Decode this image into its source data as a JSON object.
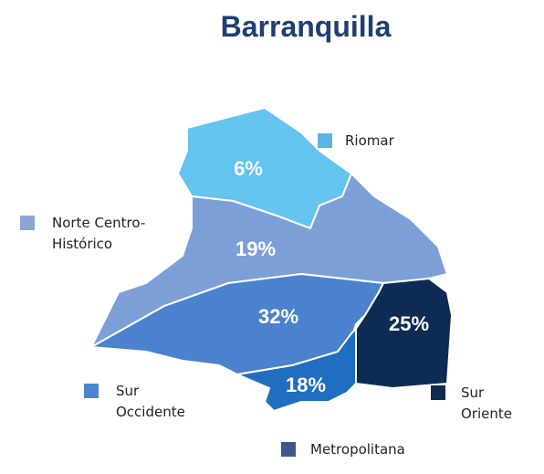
{
  "title": "Barranquilla",
  "regions": [
    {
      "name": [
        "Riomar"
      ],
      "label": "6%",
      "color": "#63c4ef"
    },
    {
      "name": [
        "Norte Centro-",
        "Histórico"
      ],
      "label": "19%",
      "color": "#7c9fd7"
    },
    {
      "name": [
        "Sur",
        "Occidente"
      ],
      "label": "32%",
      "color": "#4b82cd"
    },
    {
      "name": [
        "Metropolitana"
      ],
      "label": "18%",
      "color": "#1f6ebf"
    },
    {
      "name": [
        "Sur",
        "Oriente"
      ],
      "label": "25%",
      "color": "#0e2b56"
    }
  ]
}
